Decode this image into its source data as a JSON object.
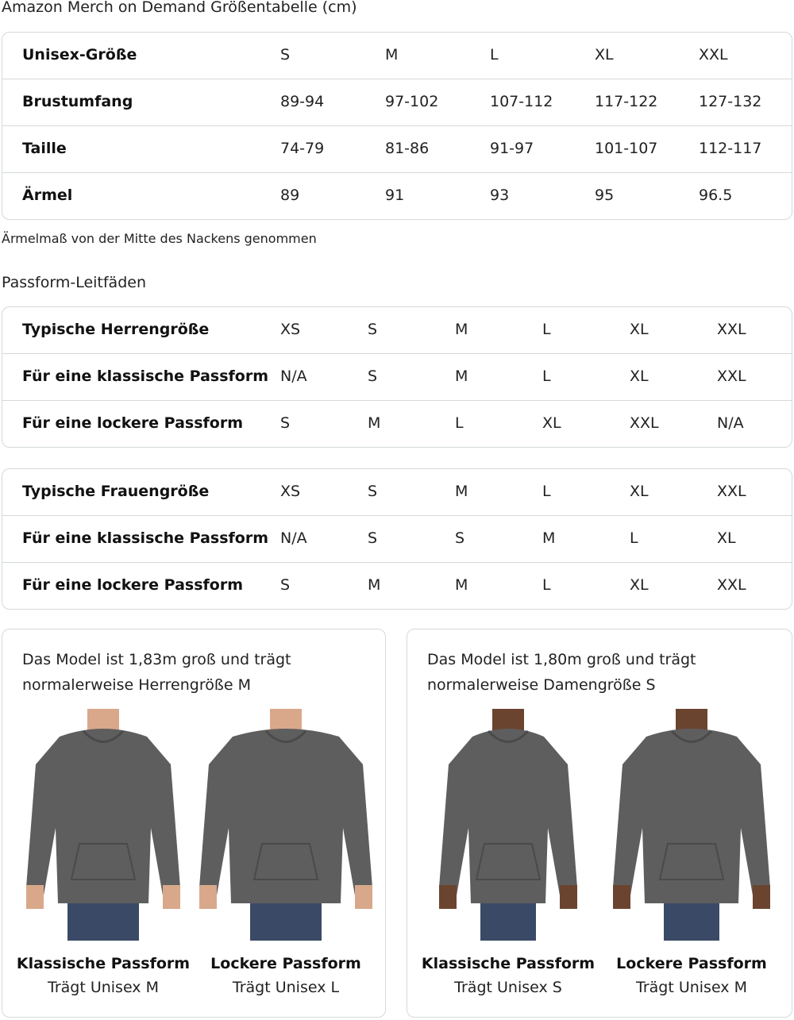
{
  "title": "Amazon Merch on Demand Größentabelle (cm)",
  "size_table": {
    "rows": [
      {
        "label": "Unisex-Größe",
        "values": [
          "S",
          "M",
          "L",
          "XL",
          "XXL"
        ]
      },
      {
        "label": "Brustumfang",
        "values": [
          "89-94",
          "97-102",
          "107-112",
          "117-122",
          "127-132"
        ]
      },
      {
        "label": "Taille",
        "values": [
          "74-79",
          "81-86",
          "91-97",
          "101-107",
          "112-117"
        ]
      },
      {
        "label": "Ärmel",
        "values": [
          "89",
          "91",
          "93",
          "95",
          "96.5"
        ]
      }
    ]
  },
  "note": "Ärmelmaß von der Mitte des Nackens genommen",
  "fit_heading": "Passform-Leitfäden",
  "men_table": {
    "rows": [
      {
        "label": "Typische Herrengröße",
        "values": [
          "XS",
          "S",
          "M",
          "L",
          "XL",
          "XXL"
        ]
      },
      {
        "label": "Für eine klassische Passform",
        "values": [
          "N/A",
          "S",
          "M",
          "L",
          "XL",
          "XXL"
        ]
      },
      {
        "label": "Für eine lockere Passform",
        "values": [
          "S",
          "M",
          "L",
          "XL",
          "XXL",
          "N/A"
        ]
      }
    ]
  },
  "women_table": {
    "rows": [
      {
        "label": "Typische Frauengröße",
        "values": [
          "XS",
          "S",
          "M",
          "L",
          "XL",
          "XXL"
        ]
      },
      {
        "label": "Für eine klassische Passform",
        "values": [
          "N/A",
          "S",
          "S",
          "M",
          "L",
          "XL"
        ]
      },
      {
        "label": "Für eine lockere Passform",
        "values": [
          "S",
          "M",
          "M",
          "L",
          "XL",
          "XXL"
        ]
      }
    ]
  },
  "cards": [
    {
      "desc": "Das Model ist 1,83m groß und trägt normalerweise Herrengröße M",
      "figures": [
        {
          "caption": "Klassische Passform",
          "sub": "Trägt Unisex M"
        },
        {
          "caption": "Lockere Passform",
          "sub": "Trägt Unisex L"
        }
      ]
    },
    {
      "desc": "Das Model ist 1,80m groß und trägt normalerweise Damengröße S",
      "figures": [
        {
          "caption": "Klassische Passform",
          "sub": "Trägt Unisex S"
        },
        {
          "caption": "Lockere Passform",
          "sub": "Trägt Unisex M"
        }
      ]
    }
  ],
  "colors": {
    "hoodie": "#5e5e5e",
    "jeans": "#3a4a66",
    "skin_men": "#d9a88a",
    "skin_women": "#6b4430",
    "border": "#d5d9d9"
  }
}
